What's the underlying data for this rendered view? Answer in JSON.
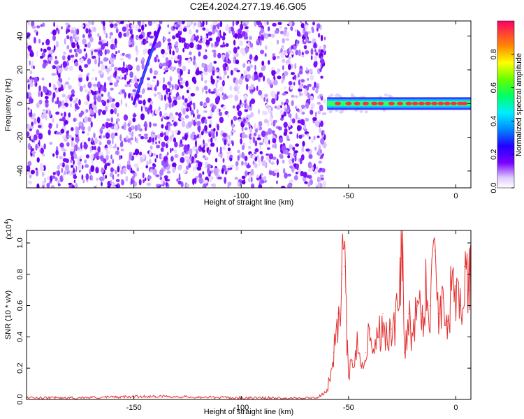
{
  "title": "C2E4.2024.277.19.46.G05",
  "chart_data": [
    {
      "type": "heatmap",
      "xlabel": "Height of straight line (km)",
      "ylabel": "Frequency (Hz)",
      "xlim": [
        -200,
        7
      ],
      "ylim": [
        -50,
        49
      ],
      "xticks": [
        -150,
        -100,
        -50,
        0
      ],
      "yticks": [
        -40,
        -20,
        0,
        20,
        40
      ],
      "noise_region_x": [
        -200,
        -61
      ],
      "features": [
        {
          "description_label": "slanted streak",
          "x_start": -150,
          "y_start": 0,
          "x_end": -138,
          "y_end": 45
        },
        {
          "description_label": "strong line",
          "x_start": -60,
          "x_end": 7,
          "y": 0
        }
      ],
      "grid": false
    },
    {
      "type": "line",
      "xlabel": "Height of straight line (km)",
      "ylabel": "SNR (10 * v/v)",
      "y_multiplier": "(x10",
      "y_multiplier_exp": "4",
      "xlim": [
        -200,
        7
      ],
      "ylim": [
        0,
        1.08
      ],
      "xticks": [
        -150,
        -100,
        -50,
        0
      ],
      "yticks": [
        0.0,
        0.2,
        0.4,
        0.6,
        0.8,
        1.0
      ],
      "series_color": "#e53030",
      "x": [
        -200,
        -180,
        -160,
        -140,
        -120,
        -100,
        -80,
        -65,
        -60,
        -57,
        -55,
        -53,
        -52,
        -51,
        -50,
        -48,
        -46,
        -44,
        -42,
        -40,
        -38,
        -36,
        -34,
        -32,
        -30,
        -28,
        -26,
        -25,
        -24,
        -22,
        -20,
        -18,
        -16,
        -14,
        -12,
        -10,
        -8,
        -6,
        -4,
        -2,
        0,
        2,
        4,
        6,
        7
      ],
      "y": [
        0.01,
        0.01,
        0.015,
        0.02,
        0.015,
        0.01,
        0.01,
        0.01,
        0.05,
        0.3,
        0.55,
        0.8,
        0.85,
        0.5,
        0.15,
        0.25,
        0.4,
        0.2,
        0.3,
        0.45,
        0.3,
        0.4,
        0.55,
        0.35,
        0.45,
        0.5,
        0.7,
        1.05,
        0.3,
        0.55,
        0.4,
        0.6,
        0.55,
        0.7,
        0.6,
        0.95,
        0.55,
        0.65,
        0.5,
        0.7,
        0.75,
        0.6,
        0.85,
        0.7,
        0.8
      ]
    }
  ],
  "colorbar": {
    "label": "Normalized spectral amplitude",
    "ticks": [
      "0.0",
      "0.2",
      "0.4",
      "0.6",
      "0.8"
    ],
    "range": [
      0,
      1
    ]
  },
  "labels": {
    "p1_xlabel": "Height of straight line (km)",
    "p1_ylabel": "Frequency (Hz)",
    "p2_xlabel": "Height of straight line (km)",
    "p2_ylabel": "SNR (10 * v/v)"
  }
}
